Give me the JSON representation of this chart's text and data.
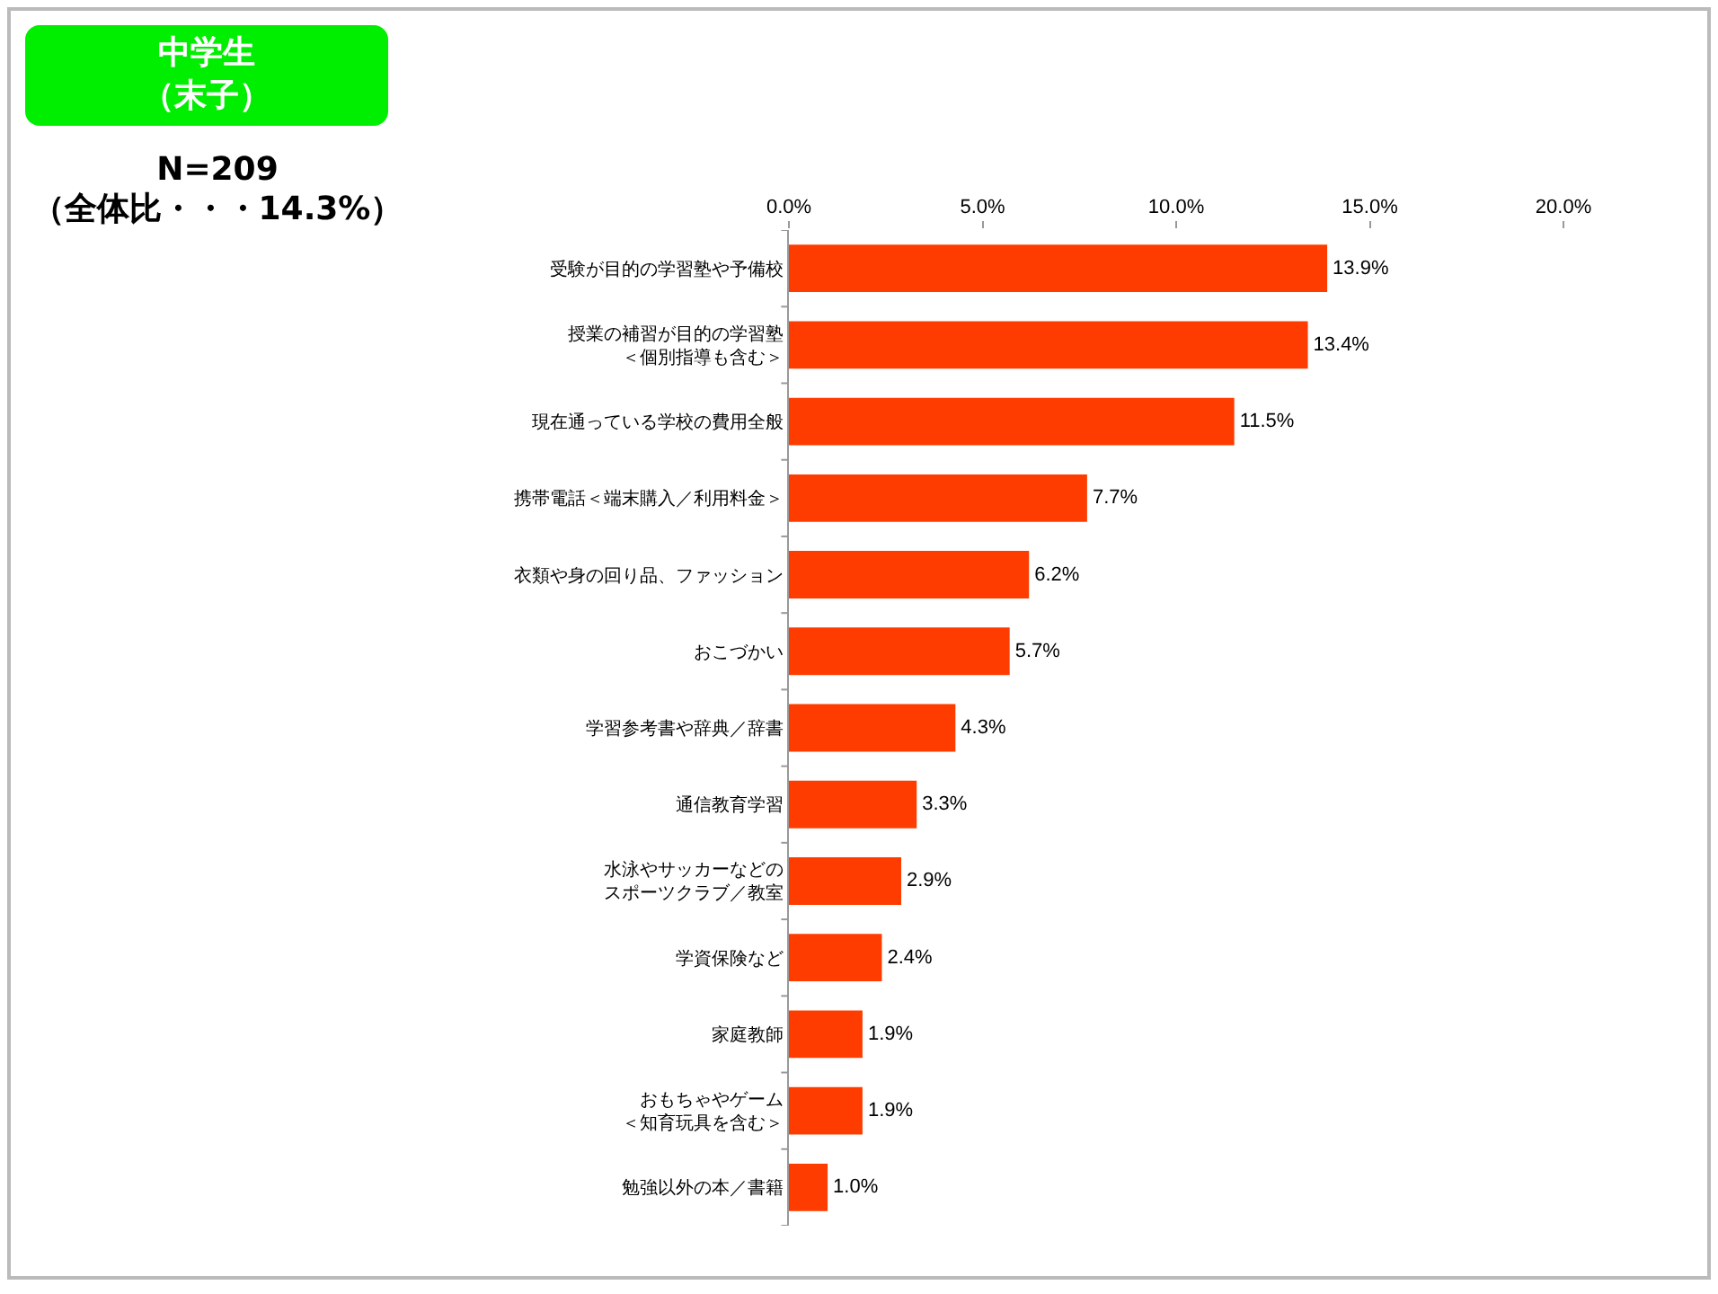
{
  "chart_data": {
    "type": "bar",
    "orientation": "horizontal",
    "title": "中学生（末子）",
    "subtitle": "N=209（全体比・・・14.3%）",
    "categories": [
      "受験が目的の学習塾や予備校",
      "授業の補習が目的の学習塾＜個別指導も含む＞",
      "現在通っている学校の費用全般",
      "携帯電話＜端末購入／利用料金＞",
      "衣類や身の回り品、ファッション",
      "おこづかい",
      "学習参考書や辞典／辞書",
      "通信教育学習",
      "水泳やサッカーなどのスポーツクラブ／教室",
      "学資保険など",
      "家庭教師",
      "おもちゃやゲーム＜知育玩具を含む＞",
      "勉強以外の本／書籍"
    ],
    "values": [
      13.9,
      13.4,
      11.5,
      7.7,
      6.2,
      5.7,
      4.3,
      3.3,
      2.9,
      2.4,
      1.9,
      1.9,
      1.0
    ],
    "value_labels": [
      "13.9%",
      "13.4%",
      "11.5%",
      "7.7%",
      "6.2%",
      "5.7%",
      "4.3%",
      "3.3%",
      "2.9%",
      "2.4%",
      "1.9%",
      "1.9%",
      "1.0%"
    ],
    "color": "#ff3c00",
    "xlim": [
      0,
      20
    ],
    "xticks": [
      {
        "value": 0,
        "label": "0.0%"
      },
      {
        "value": 5,
        "label": "5.0%"
      },
      {
        "value": 10,
        "label": "10.0%"
      },
      {
        "value": 15,
        "label": "15.0%"
      },
      {
        "value": 20,
        "label": "20.0%"
      }
    ],
    "grid": false
  }
}
